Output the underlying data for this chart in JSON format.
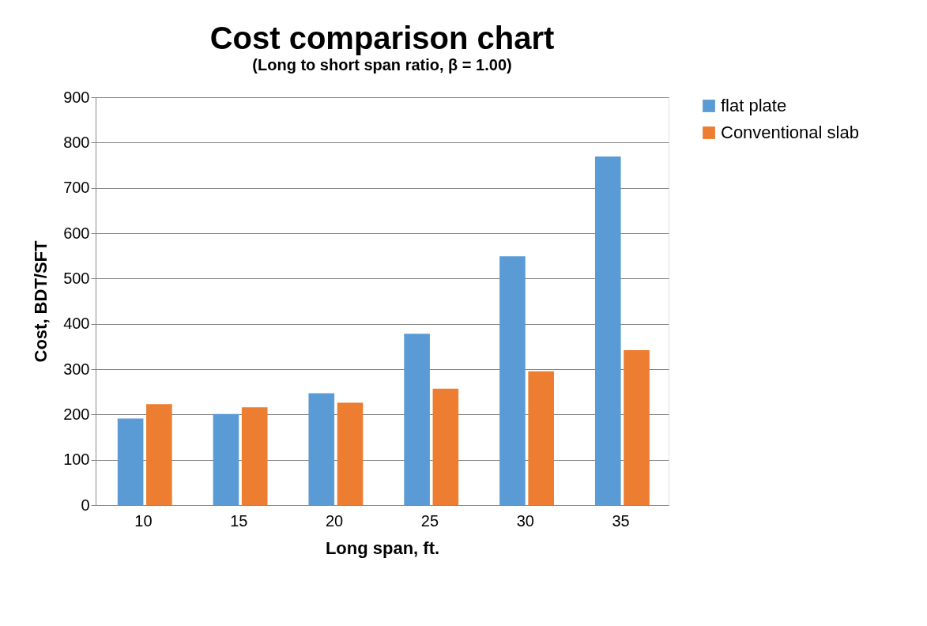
{
  "chart_data": {
    "type": "bar",
    "title": "Cost comparison chart",
    "subtitle": "(Long to short span ratio, β = 1.00)",
    "xlabel": "Long span, ft.",
    "ylabel": "Cost, BDT/SFT",
    "categories": [
      "10",
      "15",
      "20",
      "25",
      "30",
      "35"
    ],
    "series": [
      {
        "name": "flat plate",
        "color": "#5b9bd5",
        "values": [
          191,
          201,
          247,
          378,
          549,
          769
        ]
      },
      {
        "name": "Conventional slab",
        "color": "#ed7d31",
        "values": [
          223,
          216,
          226,
          257,
          295,
          342
        ]
      }
    ],
    "ylim": [
      0,
      900
    ],
    "yticks": [
      0,
      100,
      200,
      300,
      400,
      500,
      600,
      700,
      800,
      900
    ],
    "grid": "y",
    "legend": "right"
  }
}
